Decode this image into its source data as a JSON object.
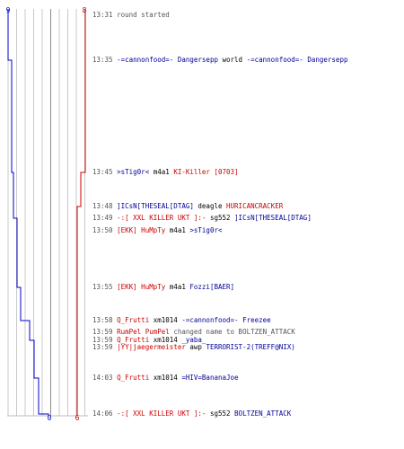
{
  "colors": {
    "terrorist": "#cc0000",
    "ct": "#000099",
    "neutral": "#555555",
    "weapon": "#000000"
  },
  "scores": {
    "ct_start": "9",
    "t_start": "8",
    "ct_end": "0",
    "t_end": "6"
  },
  "events": [
    {
      "time": "13:31",
      "parts": [
        {
          "t": "round started",
          "c": "gray"
        }
      ]
    },
    {
      "time": "13:35",
      "parts": [
        {
          "t": "-=cannonfood=- Dangersepp",
          "c": "blue"
        },
        {
          "t": "world",
          "c": "black"
        },
        {
          "t": "-=cannonfood=- Dangersepp",
          "c": "blue"
        }
      ]
    },
    {
      "time": "13:45",
      "parts": [
        {
          "t": ">sTig0r<",
          "c": "blue"
        },
        {
          "t": "m4a1",
          "c": "black"
        },
        {
          "t": "KI-Killer [0703]",
          "c": "red"
        }
      ]
    },
    {
      "time": "13:48",
      "parts": [
        {
          "t": "]ICsN[THESEAL[DTAG]",
          "c": "blue"
        },
        {
          "t": "deagle",
          "c": "black"
        },
        {
          "t": "HURICANCRACKER",
          "c": "red"
        }
      ]
    },
    {
      "time": "13:49",
      "parts": [
        {
          "t": "-:[ XXL  KILLER UKT ]:-",
          "c": "red"
        },
        {
          "t": "sg552",
          "c": "black"
        },
        {
          "t": "]ICsN[THESEAL[DTAG]",
          "c": "blue"
        }
      ]
    },
    {
      "time": "13:50",
      "parts": [
        {
          "t": "[EKK] HuMpTy",
          "c": "red"
        },
        {
          "t": "m4a1",
          "c": "black"
        },
        {
          "t": ">sTig0r<",
          "c": "blue"
        }
      ]
    },
    {
      "time": "13:55",
      "parts": [
        {
          "t": "[EKK] HuMpTy",
          "c": "red"
        },
        {
          "t": "m4a1",
          "c": "black"
        },
        {
          "t": "Fozzi[BAER]",
          "c": "blue"
        }
      ]
    },
    {
      "time": "13:58",
      "parts": [
        {
          "t": "Q_Frutti",
          "c": "red"
        },
        {
          "t": "xm1014",
          "c": "black"
        },
        {
          "t": "-=cannonfood=- Freezee",
          "c": "blue"
        }
      ]
    },
    {
      "time": "13:59",
      "parts": [
        {
          "t": "RumPel PumPel",
          "c": "red"
        },
        {
          "t": "changed name to BOLTZEN_ATTACK",
          "c": "gray"
        }
      ]
    },
    {
      "time": "13:59",
      "parts": [
        {
          "t": "Q_Frutti",
          "c": "red"
        },
        {
          "t": "xm1014",
          "c": "black"
        },
        {
          "t": "_yaba_",
          "c": "blue"
        }
      ]
    },
    {
      "time": "13:59",
      "parts": [
        {
          "t": "|YY|jaegermeister",
          "c": "red"
        },
        {
          "t": "awp",
          "c": "black"
        },
        {
          "t": "TERRORIST-2(TREFF@NIX)",
          "c": "blue"
        }
      ]
    },
    {
      "time": "14:03",
      "parts": [
        {
          "t": "Q_Frutti",
          "c": "red"
        },
        {
          "t": "xm1014",
          "c": "black"
        },
        {
          "t": "=HIV=BananaJoe",
          "c": "blue"
        }
      ]
    },
    {
      "time": "14:06",
      "parts": [
        {
          "t": "-:[ XXL  KILLER UKT ]:-",
          "c": "red"
        },
        {
          "t": "sg552",
          "c": "black"
        },
        {
          "t": "BOLTZEN_ATTACK",
          "c": "blue"
        }
      ]
    }
  ]
}
